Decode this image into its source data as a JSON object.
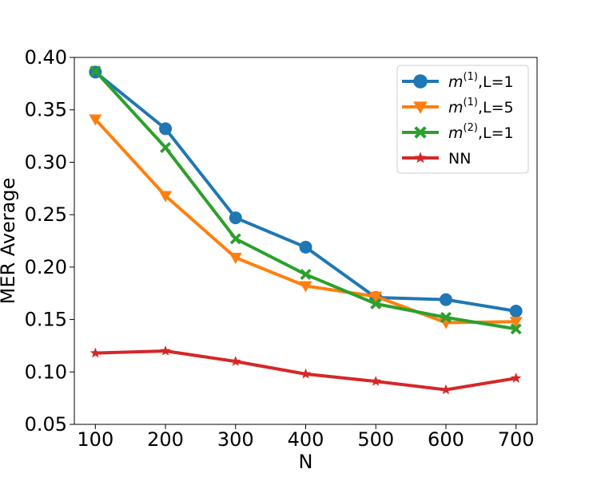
{
  "chart_data": {
    "type": "line",
    "title": "",
    "xlabel": "N",
    "ylabel": "MER Average",
    "x": [
      100,
      200,
      300,
      400,
      500,
      600,
      700
    ],
    "xlim": [
      70,
      730
    ],
    "ylim": [
      0.05,
      0.4
    ],
    "xticks": [
      "100",
      "200",
      "300",
      "400",
      "500",
      "600",
      "700"
    ],
    "yticks": [
      "0.05",
      "0.10",
      "0.15",
      "0.20",
      "0.25",
      "0.30",
      "0.35",
      "0.40"
    ],
    "grid": false,
    "legend_position": "top-right",
    "series": [
      {
        "name": "m(1),L=1",
        "legend_base": "m",
        "legend_sup": "(1)",
        "legend_suffix": ",L=1",
        "color": "#1f77b4",
        "marker": "circle",
        "values": [
          0.386,
          0.332,
          0.247,
          0.219,
          0.171,
          0.169,
          0.158
        ]
      },
      {
        "name": "m(1),L=5",
        "legend_base": "m",
        "legend_sup": "(1)",
        "legend_suffix": ",L=5",
        "color": "#ff7f0e",
        "marker": "triangle-down",
        "values": [
          0.341,
          0.268,
          0.209,
          0.182,
          0.172,
          0.147,
          0.148
        ]
      },
      {
        "name": "m(2),L=1",
        "legend_base": "m",
        "legend_sup": "(2)",
        "legend_suffix": ",L=1",
        "color": "#2ca02c",
        "marker": "x-filled",
        "values": [
          0.387,
          0.314,
          0.227,
          0.193,
          0.165,
          0.152,
          0.141
        ]
      },
      {
        "name": "NN",
        "legend_base": "NN",
        "legend_sup": "",
        "legend_suffix": "",
        "color": "#d62728",
        "marker": "star",
        "values": [
          0.118,
          0.12,
          0.11,
          0.098,
          0.091,
          0.083,
          0.094
        ]
      }
    ]
  }
}
